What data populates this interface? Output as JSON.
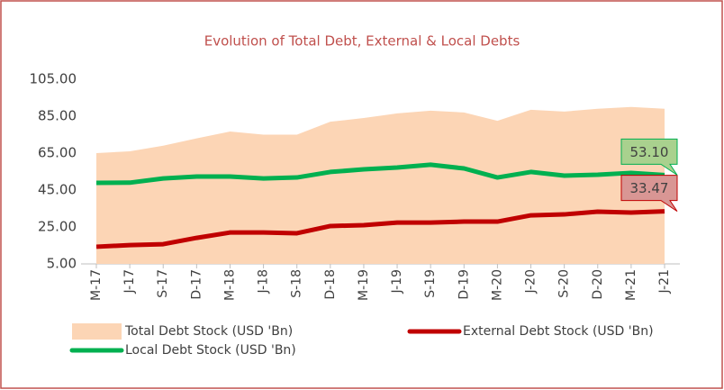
{
  "chart_data": {
    "type": "line",
    "title": "Evolution of Total Debt, External & Local Debts",
    "categories": [
      "M-17",
      "J-17",
      "S-17",
      "D-17",
      "M-18",
      "J-18",
      "S-18",
      "D-18",
      "M-19",
      "J-19",
      "S-19",
      "D-19",
      "M-20",
      "J-20",
      "S-20",
      "D-20",
      "M-21",
      "J-21"
    ],
    "series": [
      {
        "name": "Total Debt Stock (USD 'Bn)",
        "style": "area",
        "color": "#fcd5b5",
        "values": [
          65,
          66,
          69,
          73,
          76.7,
          75,
          75,
          82,
          84,
          86.5,
          88,
          87,
          82.5,
          88.5,
          87.5,
          89,
          90,
          89
        ]
      },
      {
        "name": "External Debt Stock (USD 'Bn)",
        "style": "line",
        "color": "#c00000",
        "values": [
          14.3,
          15.2,
          15.7,
          19.1,
          22,
          22,
          21.6,
          25.5,
          26,
          27.4,
          27.4,
          27.9,
          27.9,
          31.3,
          31.8,
          33.3,
          32.8,
          33.47
        ],
        "value_labels": [
          null,
          null,
          null,
          null,
          null,
          null,
          null,
          null,
          null,
          null,
          null,
          null,
          null,
          null,
          null,
          null,
          null,
          "33.47"
        ],
        "label_fill": "#d99694"
      },
      {
        "name": "Local Debt Stock (USD 'Bn)",
        "style": "line",
        "color": "#00b050",
        "values": [
          48.9,
          49,
          51.3,
          52.3,
          52.3,
          51.3,
          51.8,
          54.8,
          56.2,
          57.2,
          58.7,
          56.7,
          51.8,
          54.8,
          52.8,
          53.3,
          54.3,
          53.1
        ],
        "value_labels": [
          null,
          null,
          null,
          null,
          null,
          null,
          null,
          null,
          null,
          null,
          null,
          null,
          null,
          null,
          null,
          null,
          null,
          "53.10"
        ],
        "label_fill": "#a9d18e"
      }
    ],
    "ylim": [
      5,
      105
    ],
    "yticks": [
      {
        "value": 5,
        "label": "5.00"
      },
      {
        "value": 25,
        "label": "25.00"
      },
      {
        "value": 45,
        "label": "45.00"
      },
      {
        "value": 65,
        "label": "65.00"
      },
      {
        "value": 85,
        "label": "85.00"
      },
      {
        "value": 105,
        "label": "105.00"
      }
    ],
    "grid": false
  }
}
